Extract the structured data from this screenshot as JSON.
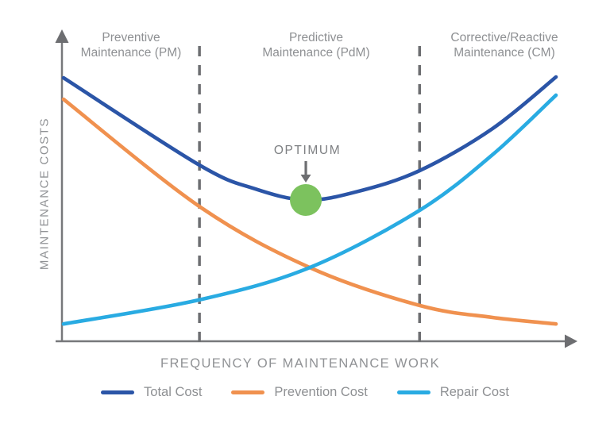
{
  "chart_data": {
    "type": "line",
    "title": "",
    "xlabel": "FREQUENCY OF MAINTENANCE WORK",
    "ylabel": "MAINTENANCE COSTS",
    "axes_numeric": false,
    "grid": false,
    "axis_color": "#6D6E71",
    "regions": [
      {
        "id": "pm",
        "lines": [
          "Preventive",
          "Maintenance (PM)"
        ]
      },
      {
        "id": "pdm",
        "lines": [
          "Predictive",
          "Maintenance (PdM)"
        ]
      },
      {
        "id": "cm",
        "lines": [
          "Corrective/Reactive",
          "Maintenance (CM)"
        ]
      }
    ],
    "region_boundaries_x": [
      0.276,
      0.723
    ],
    "series": [
      {
        "name": "Total Cost",
        "color": "#2B55A7",
        "points": [
          [
            0,
            0.897
          ],
          [
            0.276,
            0.6
          ],
          [
            0.387,
            0.52
          ],
          [
            0.492,
            0.481
          ],
          [
            0.597,
            0.51
          ],
          [
            0.723,
            0.581
          ],
          [
            0.871,
            0.724
          ],
          [
            1,
            0.9
          ]
        ]
      },
      {
        "name": "Prevention Cost",
        "color": "#F0914F",
        "points": [
          [
            0,
            0.824
          ],
          [
            0.276,
            0.459
          ],
          [
            0.5,
            0.251
          ],
          [
            0.723,
            0.122
          ],
          [
            0.871,
            0.081
          ],
          [
            1,
            0.059
          ]
        ]
      },
      {
        "name": "Repair Cost",
        "color": "#29ABE2",
        "points": [
          [
            0,
            0.059
          ],
          [
            0.276,
            0.141
          ],
          [
            0.5,
            0.251
          ],
          [
            0.723,
            0.446
          ],
          [
            0.871,
            0.635
          ],
          [
            1,
            0.838
          ]
        ]
      }
    ],
    "optimum": {
      "label": "OPTIMUM",
      "x": 0.492,
      "y": 0.481,
      "marker_color": "#7CC25E"
    }
  },
  "legend": {
    "items": [
      {
        "label": "Total Cost",
        "color": "#2B55A7"
      },
      {
        "label": "Prevention Cost",
        "color": "#F0914F"
      },
      {
        "label": "Repair Cost",
        "color": "#29ABE2"
      }
    ]
  }
}
